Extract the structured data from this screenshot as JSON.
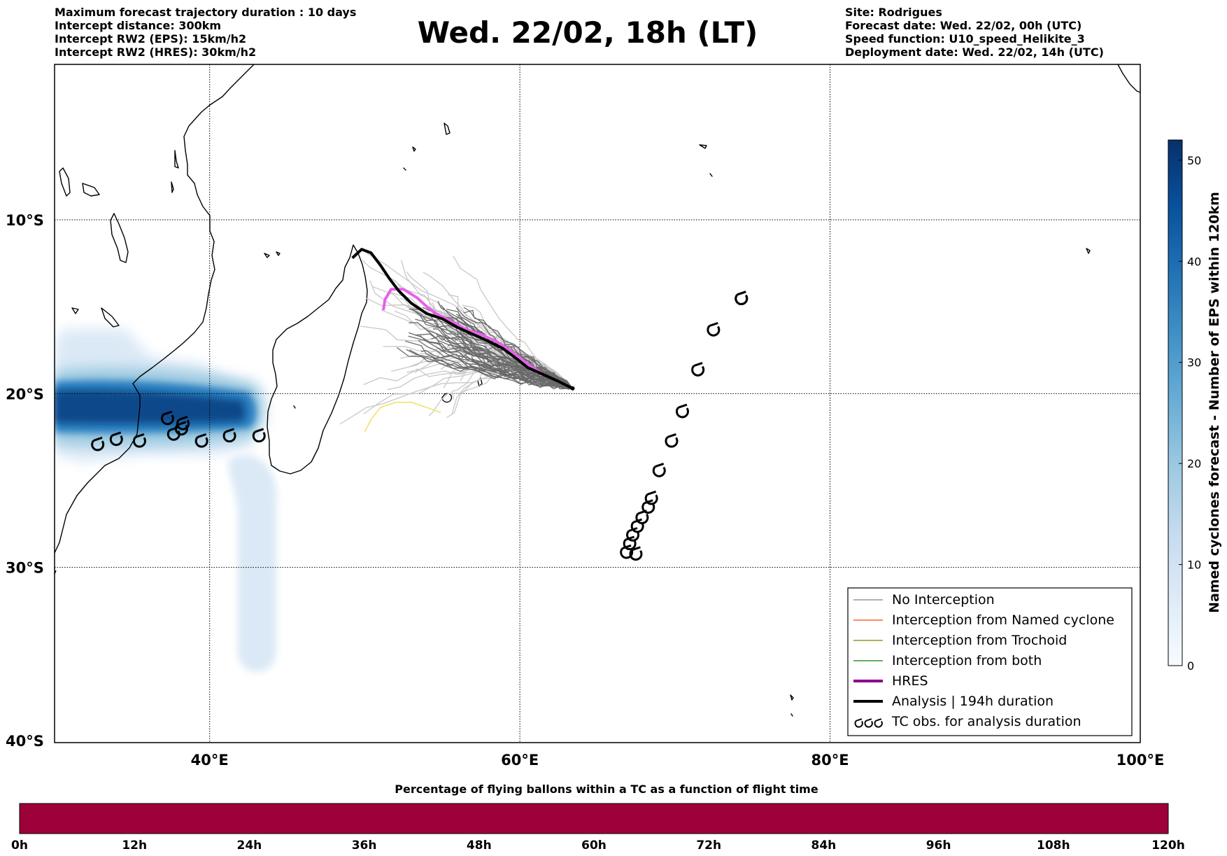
{
  "header": {
    "left": [
      "Maximum forecast trajectory duration : 10 days",
      "Intercept distance: 300km",
      "Intercept RW2 (EPS):  15km/h2",
      "Intercept RW2 (HRES): 30km/h2"
    ],
    "title": "Wed. 22/02, 18h (LT)",
    "right": [
      "Site: Rodrigues",
      "Forecast date: Wed. 22/02, 00h (UTC)",
      "Speed function: U10_speed_Helikite_3",
      "Deployment date: Wed. 22/02, 14h (UTC)"
    ]
  },
  "map": {
    "lon_range": [
      30,
      100
    ],
    "lat_range": [
      -40,
      -10
    ],
    "lon_ticks": [
      {
        "value": 40,
        "label": "40°E"
      },
      {
        "value": 60,
        "label": "60°E"
      },
      {
        "value": 80,
        "label": "80°E"
      },
      {
        "value": 100,
        "label": "100°E"
      }
    ],
    "lat_ticks": [
      {
        "value": -10,
        "label": "10°S"
      },
      {
        "value": -20,
        "label": "20°S"
      },
      {
        "value": -30,
        "label": "30°S"
      },
      {
        "value": -40,
        "label": "40°S"
      }
    ],
    "grid": "dotted",
    "deployment_site": {
      "lon": 63.4,
      "lat": -19.7
    },
    "analysis_track": [
      [
        63.4,
        -19.7
      ],
      [
        62.5,
        -19.3
      ],
      [
        61.5,
        -18.9
      ],
      [
        60.5,
        -18.5
      ],
      [
        59.8,
        -18.0
      ],
      [
        58.9,
        -17.4
      ],
      [
        58.0,
        -17.0
      ],
      [
        57.0,
        -16.6
      ],
      [
        56.0,
        -16.2
      ],
      [
        55.0,
        -15.7
      ],
      [
        54.0,
        -15.4
      ],
      [
        53.0,
        -14.8
      ],
      [
        52.2,
        -14.1
      ],
      [
        51.6,
        -13.4
      ],
      [
        51.0,
        -12.6
      ],
      [
        50.4,
        -11.9
      ],
      [
        49.8,
        -11.7
      ],
      [
        49.2,
        -12.2
      ]
    ],
    "hres_track": [
      [
        61.5,
        -18.9
      ],
      [
        60.5,
        -18.3
      ],
      [
        59.5,
        -17.6
      ],
      [
        58.5,
        -17.0
      ],
      [
        57.5,
        -16.6
      ],
      [
        56.5,
        -16.3
      ],
      [
        55.5,
        -15.8
      ],
      [
        54.6,
        -15.4
      ],
      [
        54.0,
        -15.0
      ],
      [
        53.4,
        -14.5
      ],
      [
        52.5,
        -14.0
      ],
      [
        51.7,
        -14.0
      ],
      [
        51.3,
        -14.6
      ],
      [
        51.2,
        -15.2
      ]
    ],
    "yellow_track": [
      [
        54.9,
        -21.1
      ],
      [
        54.0,
        -20.8
      ],
      [
        53.0,
        -20.5
      ],
      [
        52.0,
        -20.5
      ],
      [
        51.0,
        -20.8
      ],
      [
        50.4,
        -21.5
      ],
      [
        50.0,
        -22.2
      ]
    ],
    "tc_obs": [
      [
        74.3,
        -14.5
      ],
      [
        72.5,
        -16.3
      ],
      [
        71.5,
        -18.6
      ],
      [
        70.5,
        -21.0
      ],
      [
        69.8,
        -22.7
      ],
      [
        69.0,
        -24.4
      ],
      [
        68.5,
        -26.0
      ],
      [
        68.3,
        -26.5
      ],
      [
        67.9,
        -27.1
      ],
      [
        67.6,
        -27.6
      ],
      [
        67.3,
        -28.1
      ],
      [
        67.1,
        -28.6
      ],
      [
        66.9,
        -29.1
      ],
      [
        67.5,
        -29.2
      ],
      [
        74.3,
        -14.5
      ],
      [
        43.2,
        -22.4
      ],
      [
        41.3,
        -22.4
      ],
      [
        39.5,
        -22.7
      ],
      [
        38.2,
        -22.0
      ],
      [
        38.3,
        -21.7
      ],
      [
        37.7,
        -22.3
      ],
      [
        37.3,
        -21.4
      ],
      [
        35.5,
        -22.7
      ],
      [
        34.0,
        -22.6
      ],
      [
        32.8,
        -22.9
      ]
    ],
    "legend": {
      "position": "bottom-right",
      "items": [
        {
          "label": "No Interception",
          "color": "#808080",
          "style": "thin"
        },
        {
          "label": "Interception from Named cyclone",
          "color": "#ff4500",
          "style": "thin"
        },
        {
          "label": "Interception from Trochoid",
          "color": "#808000",
          "style": "thin"
        },
        {
          "label": "Interception from both",
          "color": "#008000",
          "style": "thin"
        },
        {
          "label": "HRES",
          "color": "#8b008b",
          "style": "thick"
        },
        {
          "label": "Analysis | 194h duration",
          "color": "#000000",
          "style": "thick"
        },
        {
          "label": "TC obs. for analysis duration",
          "color": "#000000",
          "style": "symbol"
        }
      ]
    }
  },
  "colorbar": {
    "label": "Named cyclones forecast - Number of EPS within 120km",
    "min": 0,
    "max": 52,
    "ticks": [
      0,
      10,
      20,
      30,
      40,
      50
    ],
    "colors": [
      "#f7fbff",
      "#deebf7",
      "#c6dbef",
      "#9ecae1",
      "#6baed6",
      "#4292c6",
      "#2171b5",
      "#08519c",
      "#08306b"
    ]
  },
  "timebar": {
    "title": "Percentage of flying ballons within a TC as a function of flight time",
    "color": "#9e003a",
    "ticks": [
      "0h",
      "12h",
      "24h",
      "36h",
      "48h",
      "60h",
      "72h",
      "84h",
      "96h",
      "108h",
      "120h"
    ]
  }
}
